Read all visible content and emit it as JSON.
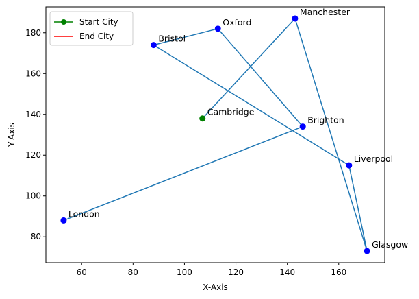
{
  "chart_data": {
    "type": "line",
    "title": "",
    "xlabel": "X-Axis",
    "ylabel": "Y-Axis",
    "xlim": [
      46.1,
      177.9
    ],
    "ylim": [
      67.3,
      192.7
    ],
    "xticks": [
      60,
      80,
      100,
      120,
      140,
      160
    ],
    "yticks": [
      80,
      100,
      120,
      140,
      160,
      180
    ],
    "grid": false,
    "legend": {
      "placement": "top-left",
      "entries": [
        {
          "name": "Start City",
          "color": "#008000",
          "marker": "circle"
        },
        {
          "name": "End City",
          "color": "#ff0000",
          "marker": "none"
        }
      ]
    },
    "route_color": "#1f77b4",
    "city_color": "#0000ff",
    "start_color": "#008000",
    "cities": [
      {
        "name": "Cambridge",
        "x": 107,
        "y": 138
      },
      {
        "name": "Manchester",
        "x": 143,
        "y": 187
      },
      {
        "name": "Glasgow",
        "x": 171,
        "y": 73
      },
      {
        "name": "Liverpool",
        "x": 164,
        "y": 115
      },
      {
        "name": "Bristol",
        "x": 88,
        "y": 174
      },
      {
        "name": "Oxford",
        "x": 113,
        "y": 182
      },
      {
        "name": "Brighton",
        "x": 146,
        "y": 134
      },
      {
        "name": "London",
        "x": 53,
        "y": 88
      }
    ],
    "start_index": 0
  }
}
